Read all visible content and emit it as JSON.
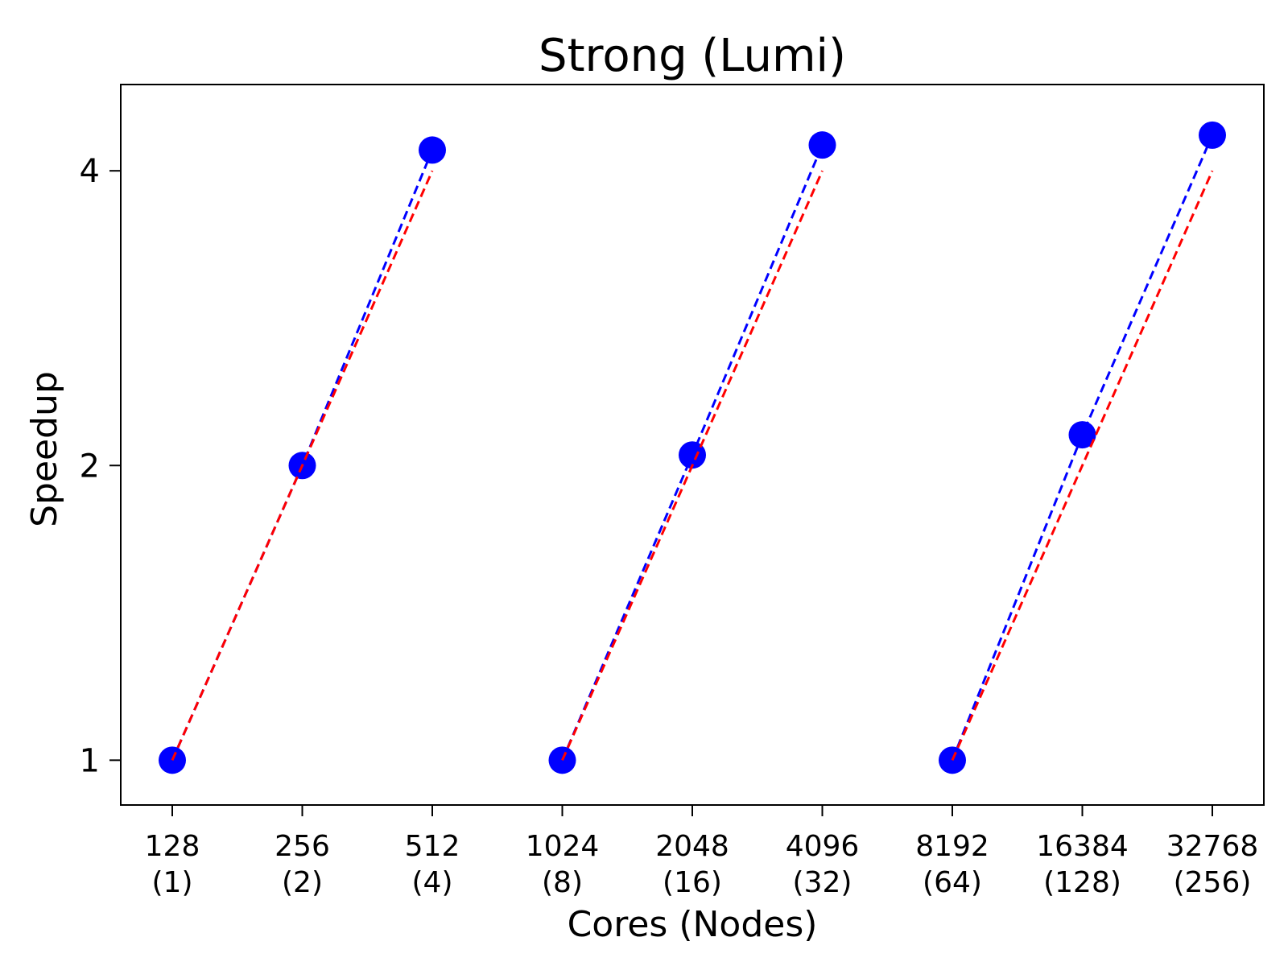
{
  "chart_data": {
    "type": "line",
    "title": "Strong (Lumi)",
    "xlabel": "Cores (Nodes)",
    "ylabel": "Speedup",
    "yscale": "log2",
    "ylim": [
      0.9,
      4.9
    ],
    "grid": false,
    "categories": [
      {
        "cores": "128",
        "nodes": "(1)"
      },
      {
        "cores": "256",
        "nodes": "(2)"
      },
      {
        "cores": "512",
        "nodes": "(4)"
      },
      {
        "cores": "1024",
        "nodes": "(8)"
      },
      {
        "cores": "2048",
        "nodes": "(16)"
      },
      {
        "cores": "4096",
        "nodes": "(32)"
      },
      {
        "cores": "8192",
        "nodes": "(64)"
      },
      {
        "cores": "16384",
        "nodes": "(128)"
      },
      {
        "cores": "32768",
        "nodes": "(256)"
      }
    ],
    "yticks": [
      {
        "value": 1,
        "label": "1"
      },
      {
        "value": 2,
        "label": "2"
      },
      {
        "value": 4,
        "label": "4"
      }
    ],
    "groups": [
      {
        "measured": [
          1,
          2.0,
          4.2
        ],
        "ideal": [
          1,
          2,
          4
        ]
      },
      {
        "measured": [
          1,
          2.05,
          4.25
        ],
        "ideal": [
          1,
          2,
          4
        ]
      },
      {
        "measured": [
          1,
          2.15,
          4.35
        ],
        "ideal": [
          1,
          2,
          4
        ]
      }
    ],
    "colors": {
      "measured": "#0000ff",
      "ideal": "#ff0000"
    }
  }
}
